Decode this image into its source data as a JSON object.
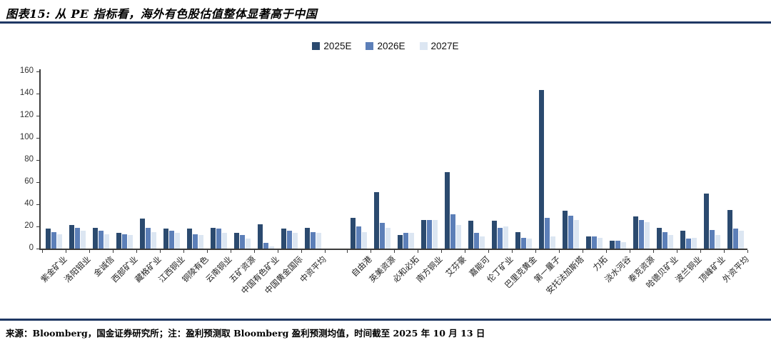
{
  "title": "图表15: 从 PE 指标看，海外有色股估值整体显著高于中国",
  "footer": "来源：Bloomberg，国金证券研究所；注：盈利预测取 Bloomberg 盈利预测均值，时间截至 2025 年 10 月 13 日",
  "colors": {
    "series_2025e": "#2B4A6F",
    "series_2026e": "#5C7FB8",
    "series_2027e": "#DCE6F2",
    "divider_rule": "#1F3864",
    "axis": "#3a3a3a"
  },
  "chart_data": {
    "type": "bar",
    "title": "图表15: 从 PE 指标看，海外有色股估值整体显著高于中国",
    "xlabel": "",
    "ylabel": "",
    "ylim": [
      0,
      160
    ],
    "yticks": [
      0,
      20,
      40,
      60,
      80,
      100,
      120,
      140,
      160
    ],
    "grid": false,
    "legend_position": "top",
    "gap_after_category_index": 11,
    "categories": [
      "紫金矿业",
      "洛阳钼业",
      "金诚信",
      "西部矿业",
      "藏格矿业",
      "江西铜业",
      "铜陵有色",
      "云南铜业",
      "五矿资源",
      "中国有色矿业",
      "中国黄金国际",
      "中资平均",
      "自由港",
      "英美资源",
      "必和必拓",
      "南方铜业",
      "艾芬豪",
      "嘉能可",
      "伦丁矿业",
      "巴里克黄金",
      "第一量子",
      "安托法加斯塔",
      "力拓",
      "淡水河谷",
      "泰克资源",
      "哈德贝矿业",
      "波兰铜业",
      "顶峰矿业",
      "外资平均"
    ],
    "series": [
      {
        "name": "2025E",
        "color": "#2B4A6F",
        "values": [
          18,
          21,
          19,
          14,
          27,
          18,
          18,
          19,
          14,
          22,
          18,
          19,
          28,
          51,
          12,
          26,
          69,
          25,
          25,
          15,
          143,
          34,
          11,
          7,
          29,
          19,
          16,
          50,
          35
        ]
      },
      {
        "name": "2026E",
        "color": "#5C7FB8",
        "values": [
          15,
          19,
          16,
          13,
          19,
          16,
          13,
          18,
          12,
          5,
          16,
          15,
          20,
          23,
          14,
          26,
          31,
          14,
          19,
          10,
          28,
          30,
          11,
          7,
          26,
          15,
          9,
          17,
          18
        ]
      },
      {
        "name": "2027E",
        "color": "#DCE6F2",
        "values": [
          13,
          16,
          13,
          12,
          15,
          14,
          12,
          14,
          9,
          2,
          14,
          14,
          15,
          19,
          14,
          26,
          21,
          11,
          20,
          9,
          11,
          26,
          10,
          6,
          24,
          12,
          10,
          12,
          16
        ]
      }
    ]
  }
}
